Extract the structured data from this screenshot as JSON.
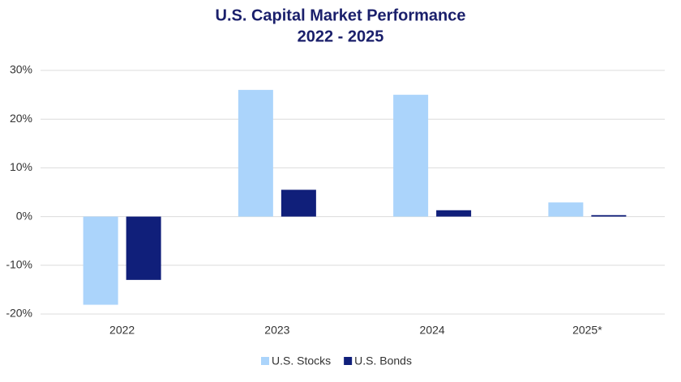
{
  "chart_data": {
    "type": "bar",
    "title": "U.S. Capital Market Performance",
    "subtitle": "2022 - 2025",
    "categories": [
      "2022",
      "2023",
      "2024",
      "2025*"
    ],
    "series": [
      {
        "name": "U.S. Stocks",
        "color": "#abd4fb",
        "values": [
          -18.1,
          26.0,
          25.0,
          2.9
        ]
      },
      {
        "name": "U.S. Bonds",
        "color": "#101f7a",
        "values": [
          -13.0,
          5.5,
          1.3,
          0.3
        ]
      }
    ],
    "ylim": [
      -20,
      30
    ],
    "yticks": [
      {
        "value": -20,
        "label": "-20%"
      },
      {
        "value": -10,
        "label": "-10%"
      },
      {
        "value": 0,
        "label": "0%"
      },
      {
        "value": 10,
        "label": "10%"
      },
      {
        "value": 20,
        "label": "20%"
      },
      {
        "value": 30,
        "label": "30%"
      }
    ],
    "grid": true,
    "legend": "bottom"
  }
}
